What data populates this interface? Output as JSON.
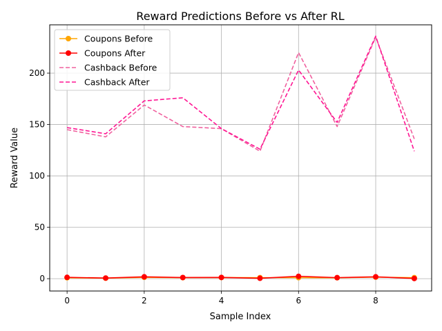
{
  "chart_data": {
    "type": "line",
    "title": "Reward Predictions Before vs After RL",
    "xlabel": "Sample Index",
    "ylabel": "Reward Value",
    "xlim": [
      -0.45,
      9.45
    ],
    "ylim": [
      -12,
      247
    ],
    "x_ticks": [
      0,
      2,
      4,
      6,
      8
    ],
    "y_ticks": [
      0,
      50,
      100,
      150,
      200
    ],
    "grid": true,
    "legend_position": "upper left",
    "x": [
      0,
      1,
      2,
      3,
      4,
      5,
      6,
      7,
      8,
      9
    ],
    "series": [
      {
        "name": "Coupons Before",
        "color": "#ffa500",
        "style": "solid",
        "marker": "circle",
        "values": [
          0.9,
          0.5,
          1.3,
          1.0,
          1.1,
          1.0,
          1.0,
          0.9,
          1.5,
          1.0
        ]
      },
      {
        "name": "Coupons After",
        "color": "#ff0000",
        "style": "solid",
        "marker": "circle",
        "values": [
          1.3,
          0.6,
          1.8,
          1.1,
          1.2,
          0.4,
          2.3,
          1.0,
          1.8,
          0.2
        ]
      },
      {
        "name": "Cashback Before",
        "color": "#f0609e",
        "style": "dashed",
        "marker": "none",
        "values": [
          145,
          138,
          169,
          148,
          146,
          124,
          220,
          148,
          235,
          136
        ]
      },
      {
        "name": "Cashback After",
        "color": "#ff1493",
        "style": "dashed",
        "marker": "none",
        "values": [
          147,
          141,
          173,
          176,
          146,
          126,
          203,
          152,
          236,
          124
        ]
      }
    ]
  }
}
